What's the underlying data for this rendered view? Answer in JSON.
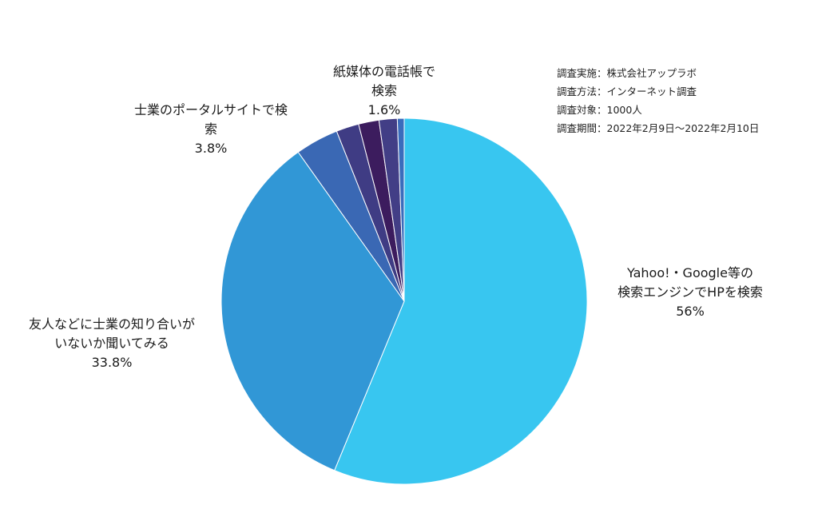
{
  "chart_data": {
    "type": "pie",
    "start_angle_deg": 0,
    "direction": "clockwise",
    "slices": [
      {
        "label": [
          "Yahoo!・Google等の",
          "検索エンジンでHPを検索"
        ],
        "percent_text": "56%",
        "value": 56.0,
        "color": "#38c6f0"
      },
      {
        "label": [
          "友人などに士業の知り合いが",
          "いないか聞いてみる"
        ],
        "percent_text": "33.8%",
        "value": 33.8,
        "color": "#3197d6"
      },
      {
        "label": [
          "士業のポータルサイトで検",
          "索"
        ],
        "percent_text": "3.8%",
        "value": 3.8,
        "color": "#3a68b4"
      },
      {
        "label": null,
        "percent_text": null,
        "value": 2.0,
        "color": "#3f3c84"
      },
      {
        "label": null,
        "percent_text": null,
        "value": 1.8,
        "color": "#3c1c5e"
      },
      {
        "label": [
          "紙媒体の電話帳で",
          "検索"
        ],
        "percent_text": "1.6%",
        "value": 1.6,
        "color": "#423e86"
      },
      {
        "label": null,
        "percent_text": null,
        "value": 0.6,
        "color": "#3a6cbc"
      }
    ]
  },
  "survey_info": {
    "lines": [
      "調査実施：株式会社アップラボ",
      "調査方法：インターネット調査",
      "調査対象：1000人",
      "調査期間：2022年2月9日〜2022年2月10日"
    ]
  }
}
